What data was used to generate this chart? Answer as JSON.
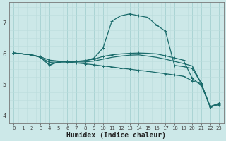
{
  "xlabel": "Humidex (Indice chaleur)",
  "xlim": [
    -0.5,
    23.5
  ],
  "ylim": [
    3.75,
    7.65
  ],
  "xticks": [
    0,
    1,
    2,
    3,
    4,
    5,
    6,
    7,
    8,
    9,
    10,
    11,
    12,
    13,
    14,
    15,
    16,
    17,
    18,
    19,
    20,
    21,
    22,
    23
  ],
  "yticks": [
    4,
    5,
    6,
    7
  ],
  "bg_color": "#cce8e8",
  "grid_color": "#aad4d4",
  "grid_color_minor": "#bbdddd",
  "line_color": "#1a6b6b",
  "lines": [
    {
      "x": [
        0,
        1,
        2,
        3,
        4,
        5,
        6,
        7,
        8,
        9,
        10,
        11,
        12,
        13,
        14,
        15,
        16,
        17,
        18,
        19,
        20,
        21,
        22,
        23
      ],
      "y": [
        6.02,
        5.99,
        5.96,
        5.9,
        5.79,
        5.76,
        5.73,
        5.7,
        5.67,
        5.64,
        5.6,
        5.57,
        5.53,
        5.5,
        5.46,
        5.43,
        5.39,
        5.35,
        5.31,
        5.27,
        5.12,
        5.03,
        4.3,
        4.35
      ],
      "marker": "+"
    },
    {
      "x": [
        0,
        1,
        2,
        3,
        4,
        5,
        6,
        7,
        8,
        9,
        10,
        11,
        12,
        13,
        14,
        15,
        16,
        17,
        18,
        19,
        20,
        21,
        22,
        23
      ],
      "y": [
        6.02,
        5.99,
        5.96,
        5.88,
        5.72,
        5.73,
        5.74,
        5.74,
        5.76,
        5.86,
        6.18,
        7.05,
        7.22,
        7.28,
        7.22,
        7.17,
        6.92,
        6.72,
        5.62,
        5.58,
        5.52,
        5.04,
        4.27,
        4.37
      ],
      "marker": "+"
    },
    {
      "x": [
        0,
        1,
        2,
        3,
        4,
        5,
        6,
        7,
        8,
        9,
        10,
        11,
        12,
        13,
        14,
        15,
        16,
        17,
        18,
        19,
        20,
        21,
        22,
        23
      ],
      "y": [
        6.02,
        5.99,
        5.96,
        5.89,
        5.63,
        5.73,
        5.74,
        5.75,
        5.78,
        5.82,
        5.91,
        5.96,
        5.99,
        6.01,
        6.02,
        6.01,
        5.99,
        5.93,
        5.86,
        5.79,
        5.2,
        4.98,
        4.29,
        4.4
      ],
      "marker": "+"
    },
    {
      "x": [
        0,
        1,
        2,
        3,
        4,
        5,
        6,
        7,
        8,
        9,
        10,
        11,
        12,
        13,
        14,
        15,
        16,
        17,
        18,
        19,
        20,
        21,
        22,
        23
      ],
      "y": [
        6.02,
        5.99,
        5.96,
        5.88,
        5.63,
        5.73,
        5.73,
        5.73,
        5.73,
        5.76,
        5.82,
        5.88,
        5.92,
        5.95,
        5.96,
        5.92,
        5.88,
        5.82,
        5.75,
        5.68,
        5.6,
        5.04,
        4.28,
        4.4
      ],
      "marker": null
    }
  ]
}
